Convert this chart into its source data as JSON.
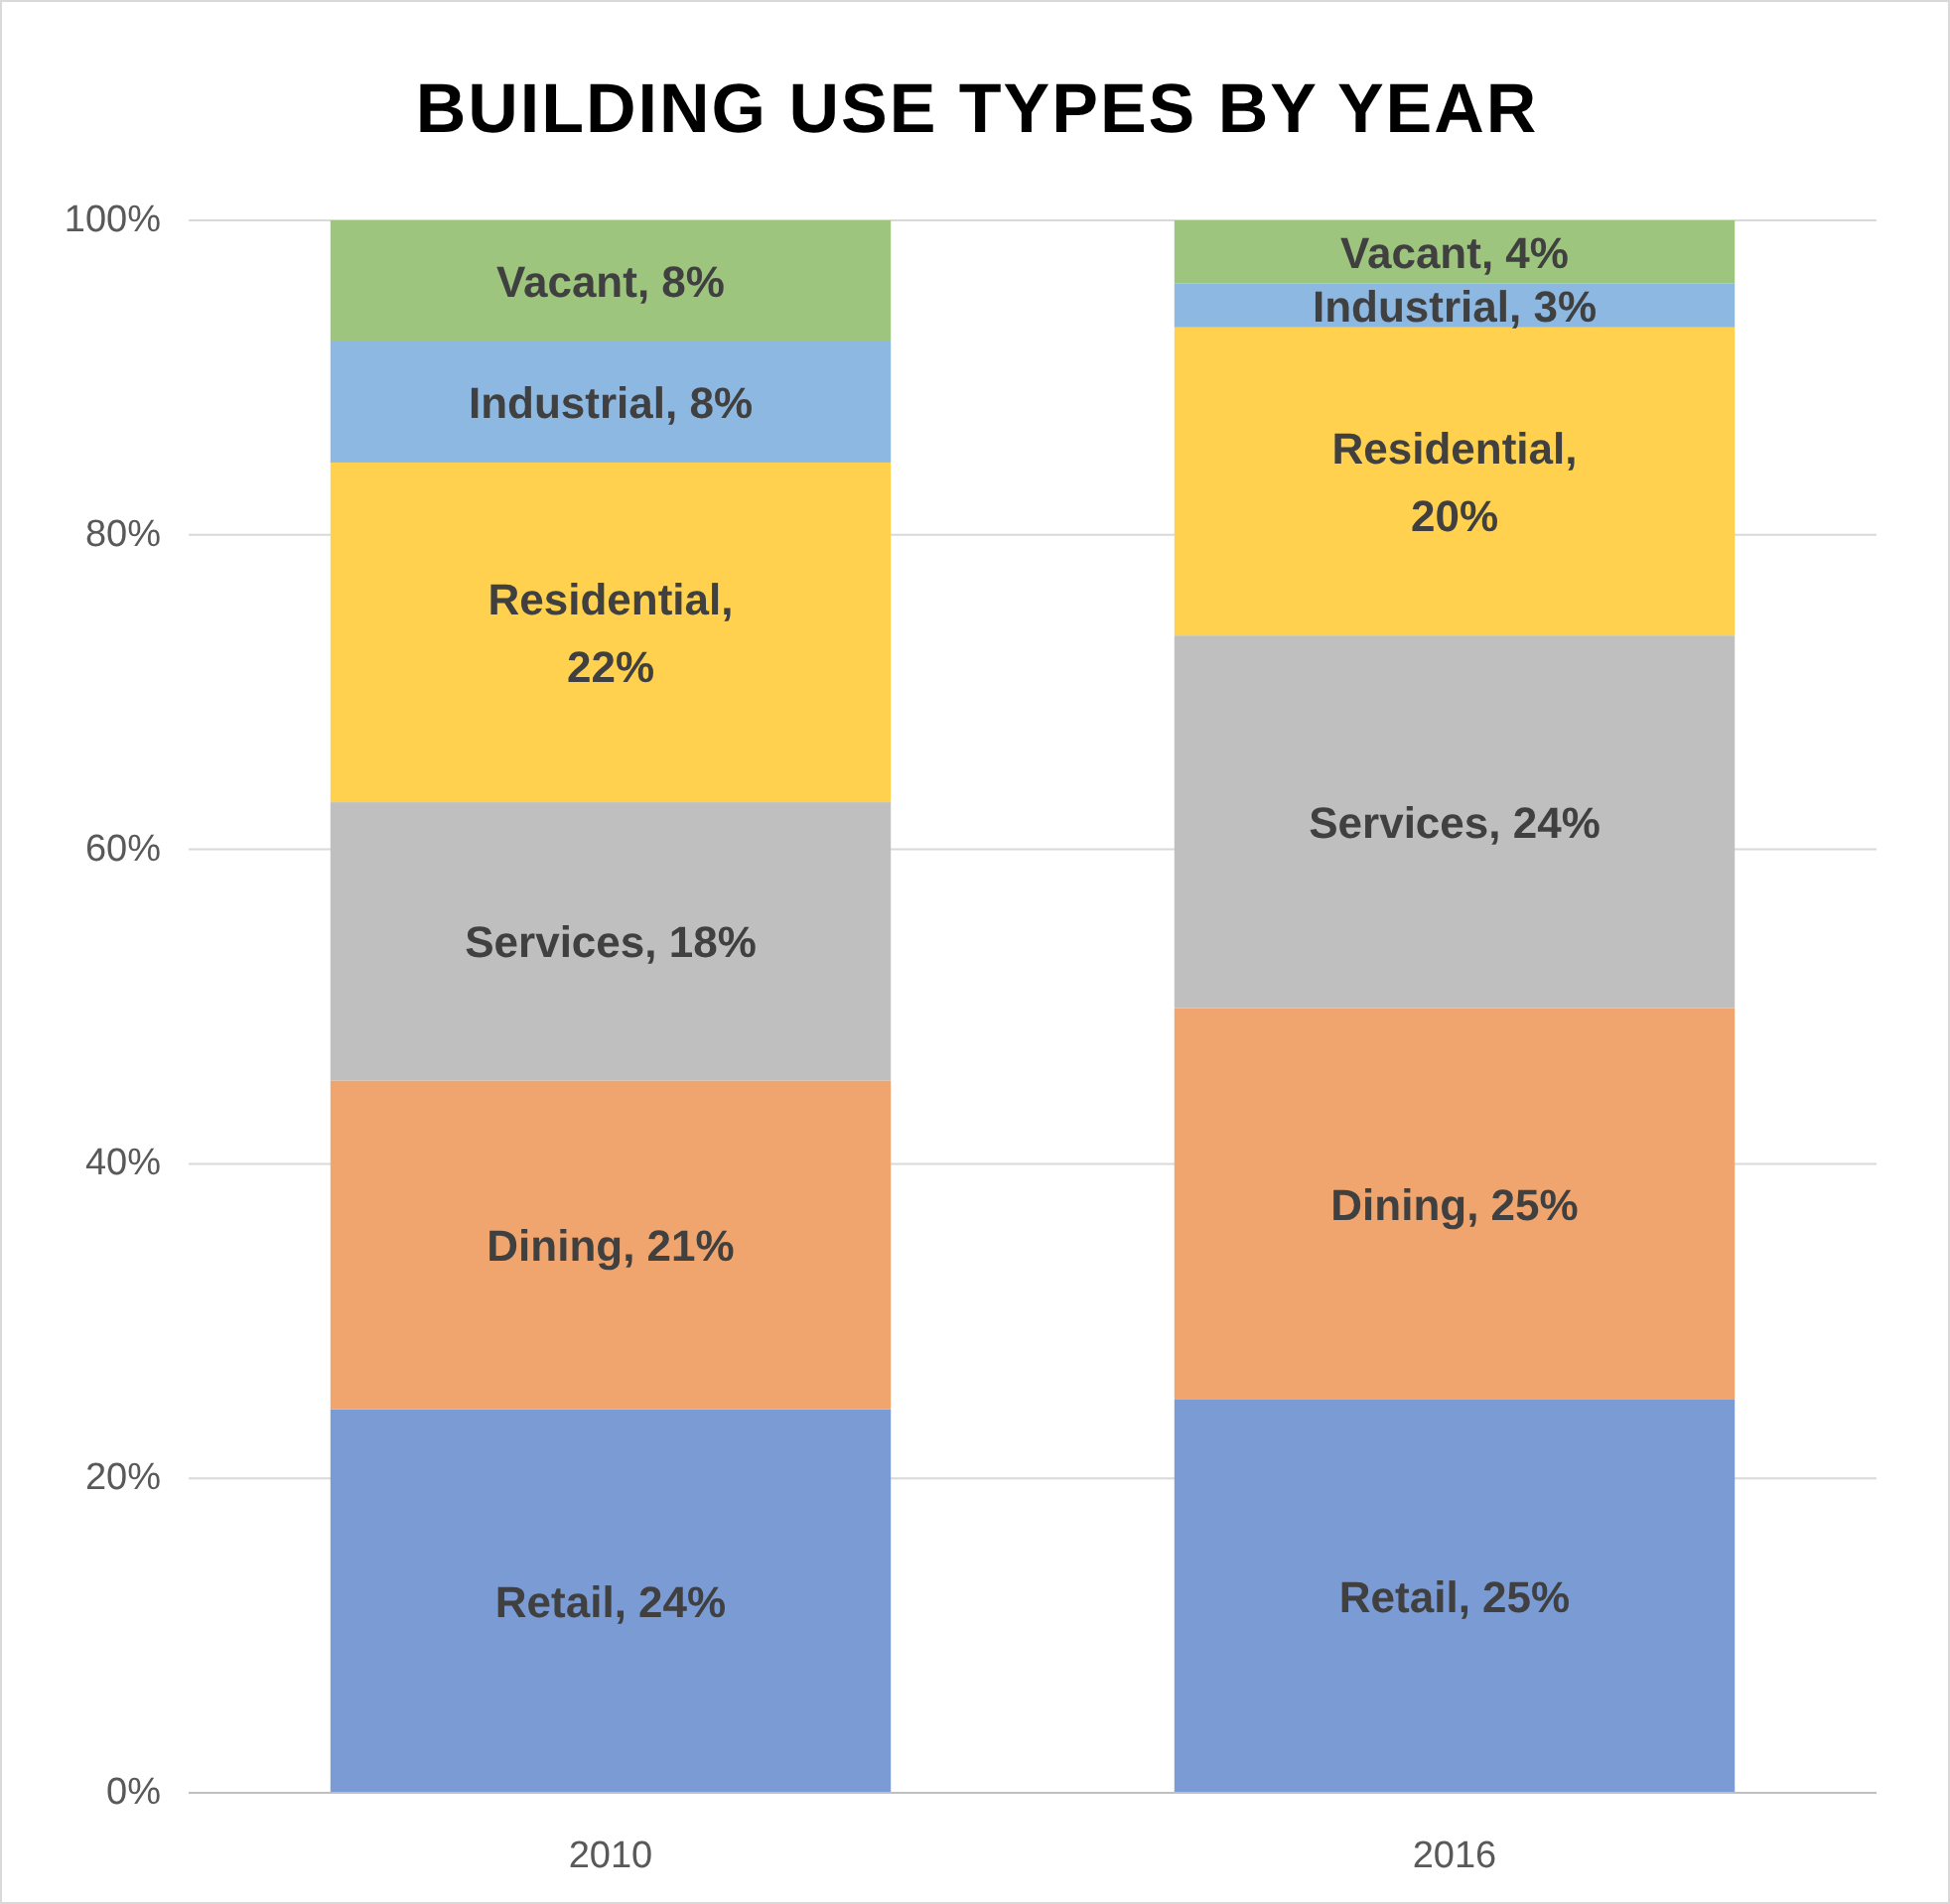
{
  "chart_data": {
    "type": "bar",
    "title": "BUILDING USE TYPES BY YEAR",
    "categories": [
      "2010",
      "2016"
    ],
    "stacked": true,
    "grid": "y",
    "ylim": [
      0,
      100
    ],
    "yticks": [
      {
        "value": 0,
        "label": "0%"
      },
      {
        "value": 20,
        "label": "20%"
      },
      {
        "value": 40,
        "label": "40%"
      },
      {
        "value": 60,
        "label": "60%"
      },
      {
        "value": 80,
        "label": "80%"
      },
      {
        "value": 100,
        "label": "100%"
      }
    ],
    "series": [
      {
        "color": "#7a9bd4",
        "values": [
          24.4,
          25.0
        ],
        "value_labels": [
          "Retail, 24%",
          "Retail, 25%"
        ]
      },
      {
        "color": "#f0a56f",
        "values": [
          20.9,
          24.9
        ],
        "value_labels": [
          "Dining, 21%",
          "Dining, 25%"
        ]
      },
      {
        "color": "#bfbfbf",
        "values": [
          17.7,
          23.7
        ],
        "value_labels": [
          "Services, 18%",
          "Services, 24%"
        ]
      },
      {
        "color": "#ffd14f",
        "values": [
          21.6,
          19.6
        ],
        "value_labels": [
          "Residential, 22%",
          "Residential, 20%"
        ]
      },
      {
        "color": "#8db8e2",
        "values": [
          7.7,
          2.8
        ],
        "value_labels": [
          "Industrial, 8%",
          "Industrial, 3%"
        ]
      },
      {
        "color": "#9dc57e",
        "values": [
          7.7,
          4.0
        ],
        "value_labels": [
          "Vacant, 8%",
          "Vacant, 4%"
        ]
      }
    ]
  }
}
